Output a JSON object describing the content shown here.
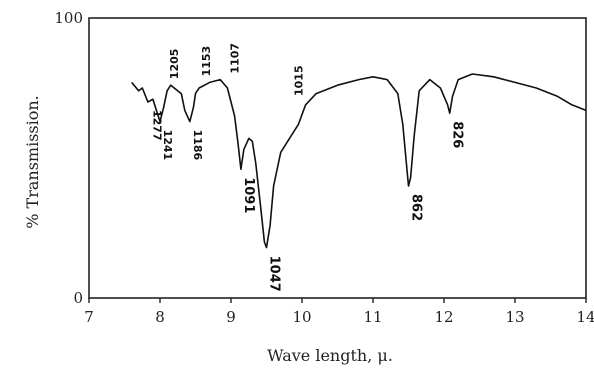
{
  "chart_data": {
    "type": "line",
    "xlabel": "Wave length, μ.",
    "ylabel": "% Transmission.",
    "xlim": [
      7,
      14
    ],
    "ylim": [
      0,
      100
    ],
    "x_ticks": [
      7,
      8,
      9,
      10,
      11,
      12,
      13,
      14
    ],
    "y_ticks": [
      0,
      100
    ],
    "grid": false,
    "series": [
      {
        "x": [
          7.6,
          7.7,
          7.75,
          7.83,
          7.9,
          7.95,
          8.0,
          8.05,
          8.1,
          8.15,
          8.2,
          8.3,
          8.35,
          8.42,
          8.47,
          8.5,
          8.55,
          8.7,
          8.85,
          8.95,
          9.05,
          9.1,
          9.14,
          9.18,
          9.25,
          9.3,
          9.35,
          9.42,
          9.47,
          9.5,
          9.55,
          9.6,
          9.7,
          9.85,
          9.95,
          10.05,
          10.2,
          10.5,
          10.8,
          11.0,
          11.2,
          11.35,
          11.42,
          11.47,
          11.5,
          11.53,
          11.58,
          11.65,
          11.8,
          11.95,
          12.05,
          12.08,
          12.12,
          12.2,
          12.4,
          12.7,
          13.0,
          13.3,
          13.6,
          13.8,
          14.0
        ],
        "y": [
          77,
          74,
          75,
          70,
          71,
          67,
          63,
          68,
          74,
          76,
          75,
          73,
          67,
          63,
          68,
          73,
          75,
          77,
          78,
          75,
          65,
          55,
          46,
          53,
          57,
          56,
          48,
          32,
          20,
          18,
          26,
          40,
          52,
          58,
          62,
          69,
          73,
          76,
          78,
          79,
          78,
          73,
          62,
          48,
          40,
          43,
          58,
          74,
          78,
          75,
          69,
          66,
          72,
          78,
          80,
          79,
          77,
          75,
          72,
          69,
          67
        ]
      }
    ],
    "annotations": [
      {
        "text": "1277",
        "x": 7.85,
        "y": 70
      },
      {
        "text": "1241",
        "x": 8.0,
        "y": 63
      },
      {
        "text": "1205",
        "x": 8.2,
        "y": 76
      },
      {
        "text": "1186",
        "x": 8.42,
        "y": 63
      },
      {
        "text": "1153",
        "x": 8.65,
        "y": 77
      },
      {
        "text": "1107",
        "x": 9.05,
        "y": 78
      },
      {
        "text": "1091",
        "x": 9.14,
        "y": 46
      },
      {
        "text": "1047",
        "x": 9.5,
        "y": 18
      },
      {
        "text": "1015",
        "x": 9.95,
        "y": 70
      },
      {
        "text": "862",
        "x": 11.5,
        "y": 40
      },
      {
        "text": "826",
        "x": 12.08,
        "y": 66
      }
    ]
  }
}
